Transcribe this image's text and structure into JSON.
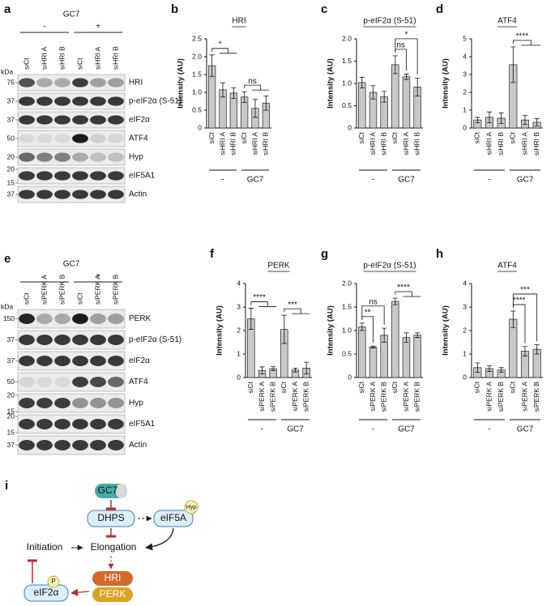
{
  "blots": [
    {
      "letter": "a",
      "treatment": "GC7",
      "groups": [
        "-",
        "+"
      ],
      "lanes": [
        "siCt",
        "siHRI A",
        "siHRI B",
        "siCt",
        "siHRI A",
        "siHRI B"
      ],
      "unit": "kDa",
      "rows": [
        {
          "label": "HRI",
          "markers": [
            "75"
          ]
        },
        {
          "label": "p-eIF2α (S-51)",
          "markers": [
            "37"
          ]
        },
        {
          "label": "eIF2α",
          "markers": [
            "37"
          ]
        },
        {
          "label": "ATF4",
          "markers": [
            "50"
          ]
        },
        {
          "label": "Hyp",
          "markers": [
            "20"
          ]
        },
        {
          "label": "eIF5A1",
          "markers": [
            "20",
            "15"
          ]
        },
        {
          "label": "Actin",
          "markers": [
            "37"
          ]
        }
      ]
    },
    {
      "letter": "e",
      "treatment": "GC7",
      "groups": [
        "-",
        "+"
      ],
      "lanes": [
        "siCt",
        "siPERK A",
        "siPERK B",
        "siCt",
        "siPERK A",
        "siPERK B"
      ],
      "unit": "kDa",
      "rows": [
        {
          "label": "PERK",
          "markers": [
            "150"
          ]
        },
        {
          "label": "p-eIF2α (S-51)",
          "markers": [
            "37"
          ]
        },
        {
          "label": "eIF2α",
          "markers": [
            "37"
          ]
        },
        {
          "label": "ATF4",
          "markers": [
            "50"
          ]
        },
        {
          "label": "Hyp",
          "markers": [
            "20",
            "15"
          ]
        },
        {
          "label": "eIF5A1",
          "markers": [
            "20",
            "15"
          ]
        },
        {
          "label": "Actin",
          "markers": [
            "37"
          ]
        }
      ]
    }
  ],
  "chart_data": [
    {
      "type": "bar",
      "letter": "b",
      "title": "HRI",
      "ylabel": "Intensity (AU)",
      "categories": [
        "siCt",
        "siHRI A",
        "siHRI B",
        "siCt",
        "siHRI A",
        "siHRI B"
      ],
      "groups": [
        "-",
        "GC7"
      ],
      "values": [
        1.75,
        1.07,
        0.98,
        0.87,
        0.55,
        0.7
      ],
      "errors": [
        0.3,
        0.2,
        0.15,
        0.15,
        0.25,
        0.2
      ],
      "color": "#c8c8c8",
      "ylim": [
        0,
        2.5
      ],
      "yticks": [
        0,
        0.5,
        {
          "value": 1,
          "label": "1.0"
        },
        1.5,
        {
          "value": 2,
          "label": "2.0"
        },
        2.5
      ],
      "annotations": [
        {
          "text": "*",
          "from": 0,
          "to": [
            1,
            2
          ]
        },
        {
          "text": "ns",
          "from": 3,
          "to": [
            4,
            5
          ]
        }
      ]
    },
    {
      "type": "bar",
      "letter": "c",
      "title": "p-eIF2α (S-51)",
      "ylabel": "Intensity (AU)",
      "categories": [
        "siCt",
        "siHRI A",
        "siHRI B",
        "siCt",
        "siHRI A",
        "siHRI B"
      ],
      "groups": [
        "-",
        "GC7"
      ],
      "values": [
        1.02,
        0.8,
        0.7,
        1.42,
        1.15,
        0.92
      ],
      "errors": [
        0.12,
        0.15,
        0.12,
        0.2,
        0.06,
        0.2
      ],
      "color": "#c8c8c8",
      "ylim": [
        0,
        2
      ],
      "yticks": [
        0,
        0.5,
        {
          "value": 1,
          "label": "1.0"
        },
        1.5,
        {
          "value": 2,
          "label": "2.0"
        }
      ],
      "annotations": [
        {
          "text": "ns",
          "from": 3,
          "to": [
            4
          ]
        },
        {
          "text": "*",
          "from": 3,
          "to": [
            5
          ]
        }
      ]
    },
    {
      "type": "bar",
      "letter": "d",
      "title": "ATF4",
      "ylabel": "Intensity (AU)",
      "categories": [
        "siCt",
        "siHRI A",
        "siHRI B",
        "siCt",
        "siHRI A",
        "siHRI B"
      ],
      "groups": [
        "-",
        "GC7"
      ],
      "values": [
        0.45,
        0.6,
        0.55,
        3.55,
        0.45,
        0.32
      ],
      "errors": [
        0.15,
        0.3,
        0.3,
        1.0,
        0.25,
        0.2
      ],
      "color": "#c8c8c8",
      "ylim": [
        0,
        5
      ],
      "yticks": [
        0,
        1,
        2,
        3,
        4,
        5
      ],
      "annotations": [
        {
          "text": "****",
          "from": 3,
          "to": [
            4,
            5
          ]
        }
      ]
    },
    {
      "type": "bar",
      "letter": "f",
      "title": "PERK",
      "ylabel": "Intensity (AU)",
      "categories": [
        "siCt",
        "siPERK A",
        "siPERK B",
        "siCt",
        "siPERK A",
        "siPERK B"
      ],
      "groups": [
        "-",
        "GC7"
      ],
      "values": [
        2.5,
        0.3,
        0.38,
        2.05,
        0.32,
        0.4
      ],
      "errors": [
        0.45,
        0.15,
        0.08,
        0.6,
        0.08,
        0.25
      ],
      "color": "#c8c8c8",
      "ylim": [
        0,
        4
      ],
      "yticks": [
        0,
        1,
        2,
        3,
        4
      ],
      "annotations": [
        {
          "text": "****",
          "from": 0,
          "to": [
            1,
            2
          ]
        },
        {
          "text": "***",
          "from": 3,
          "to": [
            4,
            5
          ]
        }
      ]
    },
    {
      "type": "bar",
      "letter": "g",
      "title": "p-eIF2α (S-51)",
      "ylabel": "Intensity (AU)",
      "categories": [
        "siCt",
        "siPERK A",
        "siPERK B",
        "siCt",
        "siPERK A",
        "siPERK B"
      ],
      "groups": [
        "-",
        "GC7"
      ],
      "values": [
        1.08,
        0.65,
        0.9,
        1.62,
        0.85,
        0.9
      ],
      "errors": [
        0.08,
        0.02,
        0.15,
        0.07,
        0.1,
        0.05
      ],
      "color": "#c8c8c8",
      "ylim": [
        0,
        2
      ],
      "yticks": [
        0,
        0.5,
        {
          "value": 1,
          "label": "1.0"
        },
        1.5,
        {
          "value": 2,
          "label": "2.0"
        }
      ],
      "annotations": [
        {
          "text": "**",
          "from": 0,
          "to": [
            1
          ]
        },
        {
          "text": "ns",
          "from": 0,
          "to": [
            2
          ]
        },
        {
          "text": "****",
          "from": 3,
          "to": [
            4,
            5
          ]
        }
      ]
    },
    {
      "type": "bar",
      "letter": "h",
      "title": "ATF4",
      "ylabel": "Intensity (AU)",
      "categories": [
        "siCt",
        "siPERK A",
        "siPERK B",
        "siCt",
        "siPERK A",
        "siPERK B"
      ],
      "groups": [
        "-",
        "GC7"
      ],
      "values": [
        0.42,
        0.38,
        0.32,
        2.48,
        1.12,
        1.2
      ],
      "errors": [
        0.2,
        0.12,
        0.1,
        0.35,
        0.2,
        0.2
      ],
      "color": "#c8c8c8",
      "ylim": [
        0,
        4
      ],
      "yticks": [
        0,
        1,
        2,
        3,
        4
      ],
      "annotations": [
        {
          "text": "****",
          "from": 3,
          "to": [
            4
          ]
        },
        {
          "text": "***",
          "from": 3,
          "to": [
            5
          ]
        }
      ]
    }
  ],
  "diagram": {
    "letter": "i",
    "nodes": [
      "GC7",
      "DHPS",
      "eIF5A",
      "Hyp",
      "Initiation",
      "Elongation",
      "HRI",
      "PERK",
      "eIF2α",
      "P"
    ]
  }
}
